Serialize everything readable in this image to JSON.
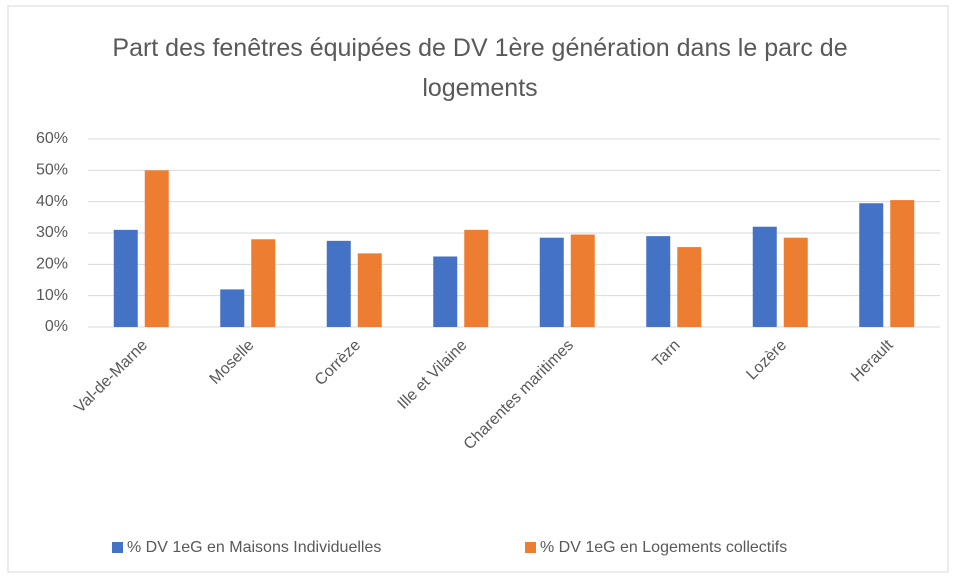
{
  "chart_data": {
    "type": "bar",
    "title": "Part des fenêtres équipées de DV 1ère génération dans le parc de logements",
    "categories": [
      "Val-de-Marne",
      "Moselle",
      "Corrèze",
      "Ille et Vilaine",
      "Charentes maritimes",
      "Tarn",
      "Lozère",
      "Herault"
    ],
    "series": [
      {
        "name": "% DV 1eG en Maisons Individuelles",
        "color": "#4472c4",
        "values": [
          31,
          12,
          27.5,
          22.5,
          28.5,
          29,
          32,
          39.5
        ]
      },
      {
        "name": "% DV 1eG en Logements collectifs",
        "color": "#ed7d31",
        "values": [
          50,
          28,
          23.5,
          31,
          29.5,
          25.5,
          28.5,
          40.5
        ]
      }
    ],
    "ylim": [
      0,
      60
    ],
    "yticks": [
      {
        "value": 0,
        "label": "0%"
      },
      {
        "value": 10,
        "label": "10%"
      },
      {
        "value": 20,
        "label": "20%"
      },
      {
        "value": 30,
        "label": "30%"
      },
      {
        "value": 40,
        "label": "40%"
      },
      {
        "value": 50,
        "label": "50%"
      },
      {
        "value": 60,
        "label": "60%"
      }
    ],
    "grid": true,
    "legend": "bottom"
  }
}
